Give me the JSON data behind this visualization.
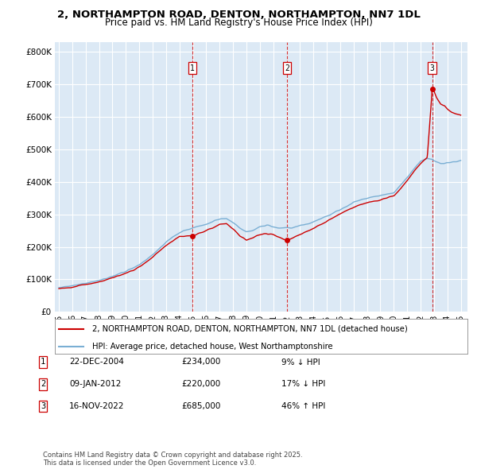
{
  "title": "2, NORTHAMPTON ROAD, DENTON, NORTHAMPTON, NN7 1DL",
  "subtitle": "Price paid vs. HM Land Registry's House Price Index (HPI)",
  "background_color": "#ffffff",
  "plot_bg_color": "#dce9f5",
  "grid_color": "#ffffff",
  "transactions": [
    {
      "num": 1,
      "date_str": "22-DEC-2004",
      "date_x": 2004.97,
      "price": 234000,
      "pct": "9%",
      "dir": "↓"
    },
    {
      "num": 2,
      "date_str": "09-JAN-2012",
      "date_x": 2012.03,
      "price": 220000,
      "pct": "17%",
      "dir": "↓"
    },
    {
      "num": 3,
      "date_str": "16-NOV-2022",
      "date_x": 2022.87,
      "price": 685000,
      "pct": "46%",
      "dir": "↑"
    }
  ],
  "legend_line1": "2, NORTHAMPTON ROAD, DENTON, NORTHAMPTON, NN7 1DL (detached house)",
  "legend_line2": "HPI: Average price, detached house, West Northamptonshire",
  "footnote": "Contains HM Land Registry data © Crown copyright and database right 2025.\nThis data is licensed under the Open Government Licence v3.0.",
  "red_color": "#cc0000",
  "blue_color": "#7aafd4",
  "ylim": [
    0,
    830000
  ],
  "xlim": [
    1994.7,
    2025.5
  ],
  "yticks": [
    0,
    100000,
    200000,
    300000,
    400000,
    500000,
    600000,
    700000,
    800000
  ]
}
